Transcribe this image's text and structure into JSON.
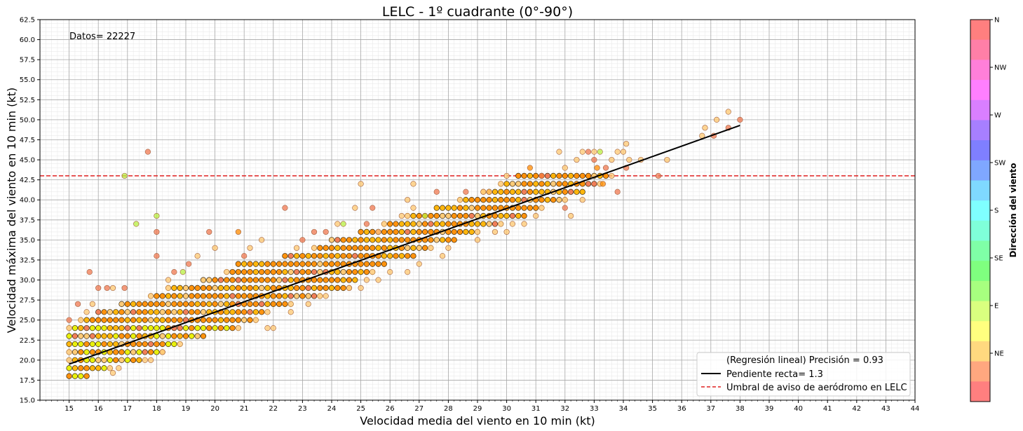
{
  "chart_data": {
    "type": "scatter",
    "title": "LELC - 1º cuadrante (0°-90°)",
    "xlabel": "Velocidad media del viento en 10 min (kt)",
    "ylabel": "Velocidad máxima del viento en 10 min (kt)",
    "xlim": [
      14,
      44
    ],
    "ylim": [
      15,
      62.5
    ],
    "x_ticks": [
      15,
      16,
      17,
      18,
      19,
      20,
      21,
      22,
      23,
      24,
      25,
      26,
      27,
      28,
      29,
      30,
      31,
      32,
      33,
      34,
      35,
      36,
      37,
      38,
      39,
      40,
      41,
      42,
      43,
      44
    ],
    "y_ticks": [
      15.0,
      17.5,
      20.0,
      22.5,
      25.0,
      27.5,
      30.0,
      32.5,
      35.0,
      37.5,
      40.0,
      42.5,
      45.0,
      47.5,
      50.0,
      52.5,
      55.0,
      57.5,
      60.0,
      62.5
    ],
    "grid": true,
    "annotation": "Datos= 22227",
    "threshold": {
      "y": 43,
      "color": "#e02020",
      "label": "Umbral de aviso de aeródromo en LELC"
    },
    "regression": {
      "x": [
        15,
        38
      ],
      "y": [
        19.5,
        49.3
      ],
      "color": "#000000",
      "label": "Pendiente recta= 1.3"
    },
    "legend": {
      "placement": "lower-right",
      "entries": [
        {
          "label": "(Regresión lineal) Precisión = 0.93",
          "style": "none"
        },
        {
          "label": "Pendiente recta= 1.3",
          "style": "solid",
          "color": "#000000"
        },
        {
          "label": "Umbral de aviso de aeródromo en LELC",
          "style": "dashed",
          "color": "#e02020"
        }
      ]
    },
    "colorbar": {
      "label": "Dirección del viento",
      "ticks": [
        "N",
        "NW",
        "W",
        "SW",
        "S",
        "SE",
        "E",
        "NE"
      ],
      "colors": [
        "#ff7f7f",
        "#ffa77f",
        "#ffd97f",
        "#ffff7f",
        "#d9ff7f",
        "#a7ff7f",
        "#7fff7f",
        "#7fffa7",
        "#7fffd9",
        "#7fffff",
        "#7fd9ff",
        "#7fa7ff",
        "#7f7fff",
        "#a77fff",
        "#d97fff",
        "#ff7fff",
        "#ff7fd9",
        "#ff7fa7",
        "#ff7f7f"
      ]
    },
    "point_colors": {
      "orange": "#ff8c00",
      "amber": "#ffb300",
      "yellow": "#e8f000",
      "salmon": "#f07850",
      "light": "#ffc870",
      "green": "#b8f040"
    },
    "dense_rows": [
      {
        "y": 18,
        "x0": 15,
        "x1": 15.7
      },
      {
        "y": 19,
        "x0": 15,
        "x1": 16.4
      },
      {
        "y": 20,
        "x0": 15,
        "x1": 17.3
      },
      {
        "y": 21,
        "x0": 15,
        "x1": 18.2
      },
      {
        "y": 22,
        "x0": 15,
        "x1": 18.8
      },
      {
        "y": 23,
        "x0": 15,
        "x1": 19.5
      },
      {
        "y": 24,
        "x0": 15,
        "x1": 20.8
      },
      {
        "y": 25,
        "x0": 15.4,
        "x1": 21.4
      },
      {
        "y": 26,
        "x0": 16,
        "x1": 21.8
      },
      {
        "y": 27,
        "x0": 16.8,
        "x1": 22.6
      },
      {
        "y": 28,
        "x0": 17.8,
        "x1": 23.6
      },
      {
        "y": 29,
        "x0": 18.4,
        "x1": 24.6
      },
      {
        "y": 30,
        "x0": 19.6,
        "x1": 24.8
      },
      {
        "y": 31,
        "x0": 20.4,
        "x1": 25.4
      },
      {
        "y": 32,
        "x0": 20.8,
        "x1": 25.8
      },
      {
        "y": 33,
        "x0": 22.4,
        "x1": 26.8
      },
      {
        "y": 34,
        "x0": 23.4,
        "x1": 27.4
      },
      {
        "y": 35,
        "x0": 24,
        "x1": 28.2
      },
      {
        "y": 36,
        "x0": 25,
        "x1": 29
      },
      {
        "y": 37,
        "x0": 25.8,
        "x1": 29.8
      },
      {
        "y": 38,
        "x0": 26.6,
        "x1": 30.6
      },
      {
        "y": 39,
        "x0": 27.6,
        "x1": 31.2
      },
      {
        "y": 40,
        "x0": 28.4,
        "x1": 32
      },
      {
        "y": 41,
        "x0": 29.2,
        "x1": 32.6
      },
      {
        "y": 42,
        "x0": 29.8,
        "x1": 33.2
      },
      {
        "y": 43,
        "x0": 30.4,
        "x1": 33.4
      }
    ],
    "sparse_points": [
      {
        "x": 17.7,
        "y": 46,
        "c": "salmon"
      },
      {
        "x": 16.9,
        "y": 43,
        "c": "green"
      },
      {
        "x": 17.3,
        "y": 37,
        "c": "green"
      },
      {
        "x": 18,
        "y": 38,
        "c": "green"
      },
      {
        "x": 18,
        "y": 36,
        "c": "salmon"
      },
      {
        "x": 18,
        "y": 33,
        "c": "salmon"
      },
      {
        "x": 15.7,
        "y": 31,
        "c": "salmon"
      },
      {
        "x": 16,
        "y": 29,
        "c": "salmon"
      },
      {
        "x": 16.3,
        "y": 29,
        "c": "salmon"
      },
      {
        "x": 16.5,
        "y": 29,
        "c": "light"
      },
      {
        "x": 16.9,
        "y": 29,
        "c": "salmon"
      },
      {
        "x": 15,
        "y": 25,
        "c": "salmon"
      },
      {
        "x": 15.3,
        "y": 27,
        "c": "salmon"
      },
      {
        "x": 15.6,
        "y": 26,
        "c": "light"
      },
      {
        "x": 15.8,
        "y": 27,
        "c": "light"
      },
      {
        "x": 16.5,
        "y": 18.4,
        "c": "light"
      },
      {
        "x": 16.7,
        "y": 19,
        "c": "light"
      },
      {
        "x": 17.6,
        "y": 20,
        "c": "light"
      },
      {
        "x": 17.8,
        "y": 20,
        "c": "light"
      },
      {
        "x": 18.2,
        "y": 21,
        "c": "light"
      },
      {
        "x": 18.4,
        "y": 30,
        "c": "light"
      },
      {
        "x": 18.6,
        "y": 31,
        "c": "salmon"
      },
      {
        "x": 18.9,
        "y": 31,
        "c": "green"
      },
      {
        "x": 19.1,
        "y": 32,
        "c": "salmon"
      },
      {
        "x": 19.4,
        "y": 33,
        "c": "light"
      },
      {
        "x": 19.8,
        "y": 36,
        "c": "salmon"
      },
      {
        "x": 20,
        "y": 34,
        "c": "light"
      },
      {
        "x": 20.8,
        "y": 36,
        "c": "orange"
      },
      {
        "x": 21,
        "y": 33,
        "c": "salmon"
      },
      {
        "x": 21.2,
        "y": 34,
        "c": "light"
      },
      {
        "x": 21.6,
        "y": 35,
        "c": "light"
      },
      {
        "x": 21.8,
        "y": 24,
        "c": "light"
      },
      {
        "x": 22,
        "y": 24,
        "c": "light"
      },
      {
        "x": 22.4,
        "y": 39,
        "c": "salmon"
      },
      {
        "x": 22.8,
        "y": 34,
        "c": "light"
      },
      {
        "x": 22.6,
        "y": 26,
        "c": "light"
      },
      {
        "x": 23,
        "y": 35,
        "c": "salmon"
      },
      {
        "x": 23.2,
        "y": 27,
        "c": "light"
      },
      {
        "x": 23.4,
        "y": 36,
        "c": "salmon"
      },
      {
        "x": 23.8,
        "y": 36,
        "c": "salmon"
      },
      {
        "x": 23.8,
        "y": 28,
        "c": "light"
      },
      {
        "x": 24.2,
        "y": 37,
        "c": "light"
      },
      {
        "x": 24.4,
        "y": 37,
        "c": "green"
      },
      {
        "x": 24.6,
        "y": 29,
        "c": "light"
      },
      {
        "x": 24.8,
        "y": 39,
        "c": "light"
      },
      {
        "x": 25,
        "y": 42,
        "c": "light"
      },
      {
        "x": 25,
        "y": 29,
        "c": "light"
      },
      {
        "x": 25.2,
        "y": 37,
        "c": "salmon"
      },
      {
        "x": 25.4,
        "y": 39,
        "c": "salmon"
      },
      {
        "x": 25.2,
        "y": 30,
        "c": "light"
      },
      {
        "x": 25.6,
        "y": 30,
        "c": "light"
      },
      {
        "x": 25.6,
        "y": 36,
        "c": "light"
      },
      {
        "x": 26,
        "y": 31,
        "c": "light"
      },
      {
        "x": 26.4,
        "y": 38,
        "c": "light"
      },
      {
        "x": 26.6,
        "y": 40,
        "c": "light"
      },
      {
        "x": 26.8,
        "y": 39,
        "c": "light"
      },
      {
        "x": 27,
        "y": 32,
        "c": "light"
      },
      {
        "x": 26.6,
        "y": 31,
        "c": "light"
      },
      {
        "x": 26.8,
        "y": 42,
        "c": "light"
      },
      {
        "x": 27.2,
        "y": 38,
        "c": "green"
      },
      {
        "x": 27.6,
        "y": 41,
        "c": "salmon"
      },
      {
        "x": 27.8,
        "y": 33,
        "c": "light"
      },
      {
        "x": 28,
        "y": 34,
        "c": "light"
      },
      {
        "x": 28.6,
        "y": 41,
        "c": "salmon"
      },
      {
        "x": 29,
        "y": 35,
        "c": "light"
      },
      {
        "x": 29.2,
        "y": 41,
        "c": "light"
      },
      {
        "x": 29.4,
        "y": 41,
        "c": "light"
      },
      {
        "x": 29.6,
        "y": 36,
        "c": "light"
      },
      {
        "x": 30,
        "y": 36,
        "c": "light"
      },
      {
        "x": 30,
        "y": 43,
        "c": "light"
      },
      {
        "x": 30.2,
        "y": 37,
        "c": "light"
      },
      {
        "x": 30.6,
        "y": 37,
        "c": "light"
      },
      {
        "x": 30.8,
        "y": 44,
        "c": "orange"
      },
      {
        "x": 31,
        "y": 38,
        "c": "light"
      },
      {
        "x": 31.2,
        "y": 43,
        "c": "salmon"
      },
      {
        "x": 31.8,
        "y": 46,
        "c": "light"
      },
      {
        "x": 32,
        "y": 44,
        "c": "light"
      },
      {
        "x": 32,
        "y": 39,
        "c": "salmon"
      },
      {
        "x": 32.2,
        "y": 38,
        "c": "light"
      },
      {
        "x": 32.4,
        "y": 45,
        "c": "light"
      },
      {
        "x": 32.6,
        "y": 46,
        "c": "light"
      },
      {
        "x": 32.8,
        "y": 46,
        "c": "salmon"
      },
      {
        "x": 33,
        "y": 46,
        "c": "light"
      },
      {
        "x": 33,
        "y": 45,
        "c": "salmon"
      },
      {
        "x": 32.6,
        "y": 40,
        "c": "light"
      },
      {
        "x": 33.2,
        "y": 46,
        "c": "green"
      },
      {
        "x": 33.1,
        "y": 44,
        "c": "orange"
      },
      {
        "x": 33.3,
        "y": 42,
        "c": "orange"
      },
      {
        "x": 33.6,
        "y": 45,
        "c": "light"
      },
      {
        "x": 33.4,
        "y": 44,
        "c": "salmon"
      },
      {
        "x": 33.8,
        "y": 46,
        "c": "light"
      },
      {
        "x": 33.6,
        "y": 43,
        "c": "light"
      },
      {
        "x": 33.8,
        "y": 41,
        "c": "salmon"
      },
      {
        "x": 34,
        "y": 46,
        "c": "light"
      },
      {
        "x": 34.2,
        "y": 45,
        "c": "light"
      },
      {
        "x": 34.1,
        "y": 44,
        "c": "salmon"
      },
      {
        "x": 34.1,
        "y": 47,
        "c": "light"
      },
      {
        "x": 34.6,
        "y": 45,
        "c": "light"
      },
      {
        "x": 35.2,
        "y": 43,
        "c": "salmon"
      },
      {
        "x": 35.5,
        "y": 45,
        "c": "light"
      },
      {
        "x": 36.7,
        "y": 48,
        "c": "light"
      },
      {
        "x": 36.8,
        "y": 49,
        "c": "light"
      },
      {
        "x": 37.1,
        "y": 48,
        "c": "salmon"
      },
      {
        "x": 37.2,
        "y": 50,
        "c": "light"
      },
      {
        "x": 37.6,
        "y": 51,
        "c": "light"
      },
      {
        "x": 37.6,
        "y": 49,
        "c": "salmon"
      },
      {
        "x": 38,
        "y": 50,
        "c": "salmon"
      }
    ]
  }
}
